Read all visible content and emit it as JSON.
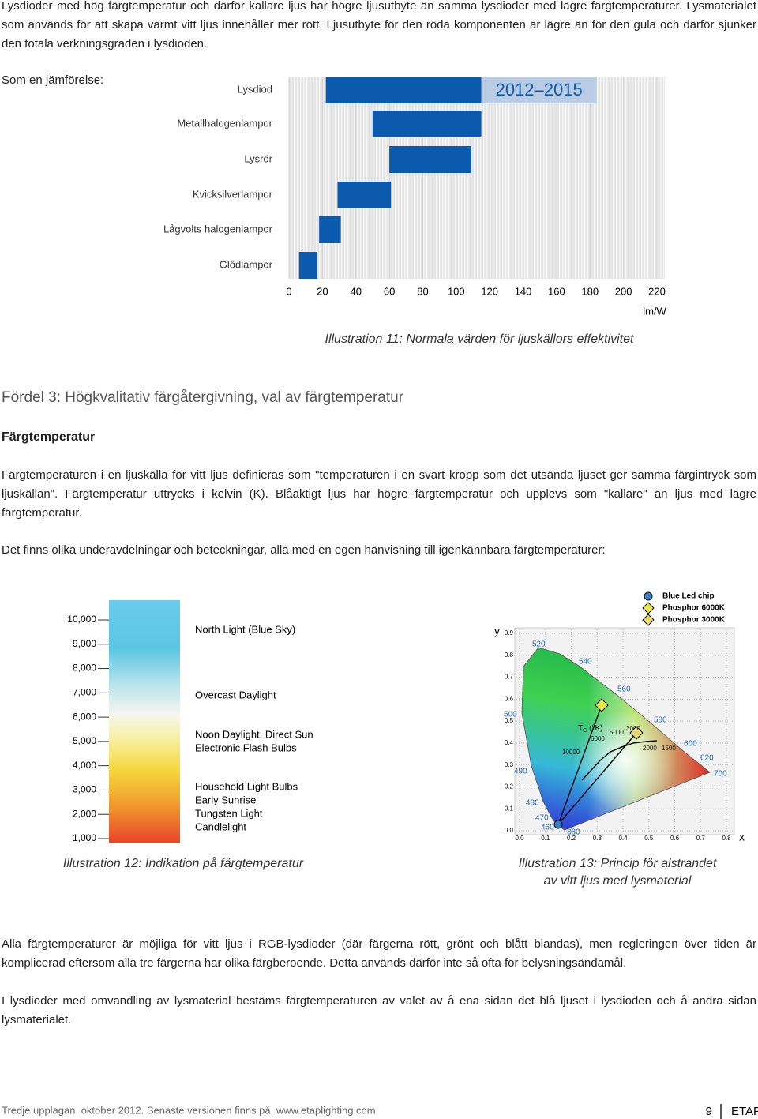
{
  "document": {
    "intro": "Lysdioder med hög färgtemperatur och därför kallare ljus har högre ljusutbyte än samma lysdioder med lägre färgtemperaturer. Lysmaterialet som används för att skapa varmt vitt ljus innehåller mer rött. Ljusutbyte för den röda komponenten är lägre än för den gula och därför sjunker den totala verkningsgraden i lysdioden.",
    "comparison": "Som en jämförelse:",
    "heading": "Fördel 3: Högkvalitativ färgåtergivning, val av färgtemperatur",
    "subheading": "Färgtemperatur",
    "paragraphs": [
      "Färgtemperaturen i en ljuskälla för vitt ljus definieras som \"temperaturen i en svart kropp som det utsända ljuset ger samma färgintryck som ljuskällan\". Färgtemperatur uttrycks i kelvin (K). Blåaktigt ljus har högre färgtemperatur och upplevs som \"kallare\" än ljus med lägre färgtemperatur.",
      "Det finns olika underavdelningar och beteckningar, alla med en egen hänvisning till igenkännbara färgtemperaturer:",
      "Alla färgtemperaturer är möjliga för vitt ljus i RGB-lysdioder (där färgerna rött, grönt och blått blandas), men regleringen över tiden är komplicerad eftersom alla tre färgerna har olika färgberoende. Detta används därför inte så ofta för belysningsändamål.",
      "I lysdioder med omvandling av lysmaterial bestäms färgtemperaturen av valet av å ena sidan det blå ljuset i lysdioden och å andra sidan lysmaterialet."
    ],
    "footer": "Tredje upplagan, oktober 2012. Senaste versionen finns på. www.etaplighting.com",
    "page_number": 9,
    "brand": "ETAP"
  },
  "chart_data": [
    {
      "type": "range-bar",
      "categories": [
        "Lysdiod",
        "Metallhalogenlampor",
        "Lysrör",
        "Kvicksilverlampor",
        "Lågvolts halogenlampor",
        "Glödlampor"
      ],
      "low": [
        22,
        50,
        60,
        29,
        18,
        6
      ],
      "high": [
        115,
        115,
        109,
        61,
        31,
        17
      ],
      "color": "#0b5aad",
      "projection": [
        115,
        184
      ],
      "projection_label": "2012–2015",
      "projection_color": "#b9cce4",
      "xlim": [
        0,
        220
      ],
      "xticks": [
        0,
        20,
        40,
        60,
        80,
        100,
        120,
        140,
        160,
        180,
        200,
        220
      ],
      "xlabel": "lm/W",
      "caption": "Illustration 11: Normala värden för ljuskällors effektivitet"
    },
    {
      "type": "colorbar",
      "ylim": [
        1000,
        10000
      ],
      "yticks": [
        {
          "value": 10000,
          "label": "10,000"
        },
        {
          "value": 9000,
          "label": "9,000"
        },
        {
          "value": 8000,
          "label": "8,000"
        },
        {
          "value": 7000,
          "label": "7,000"
        },
        {
          "value": 6000,
          "label": "6,000"
        },
        {
          "value": 5000,
          "label": "5,000"
        },
        {
          "value": 4000,
          "label": "4,000"
        },
        {
          "value": 3000,
          "label": "3,000"
        },
        {
          "value": 2000,
          "label": "2,000"
        },
        {
          "value": 1000,
          "label": "1,000"
        }
      ],
      "annotations": [
        "North Light (Blue Sky)",
        "Overcast Daylight",
        "Noon Daylight, Direct Sun",
        "Electronic Flash Bulbs",
        "Household Light Bulbs",
        "Early Sunrise",
        "Tungsten Light",
        "Candlelight"
      ],
      "caption": "Illustration 12: Indikation på färgtemperatur"
    },
    {
      "type": "cie",
      "xlim": [
        0,
        0.8
      ],
      "ylim": [
        0,
        0.9
      ],
      "xticks": [
        {
          "value": 0,
          "label": "0.0"
        },
        0.1,
        0.2,
        0.3,
        0.4,
        0.5,
        0.6,
        0.7,
        0.8
      ],
      "yticks": [
        {
          "value": 0,
          "label": "0.0"
        },
        0.1,
        0.2,
        0.3,
        0.4,
        0.5,
        0.6,
        0.7,
        0.8,
        0.9
      ],
      "xlabel": "x",
      "ylabel": "y",
      "wavelengths": [
        520,
        540,
        560,
        580,
        600,
        620,
        700,
        500,
        490,
        480,
        470,
        460,
        380
      ],
      "tc_label": "T",
      "tc_sub": "C",
      "tc_unit": "(°K)",
      "temperatures": [
        10000,
        6000,
        5000,
        3000,
        2000,
        1500
      ],
      "legend": [
        "Blue Led chip",
        "Phosphor 6000K",
        "Phosphor 3000K"
      ],
      "caption_lines": [
        "Illustration 13: Princip för alstrandet",
        "av vitt ljus med lysmaterial"
      ]
    }
  ]
}
